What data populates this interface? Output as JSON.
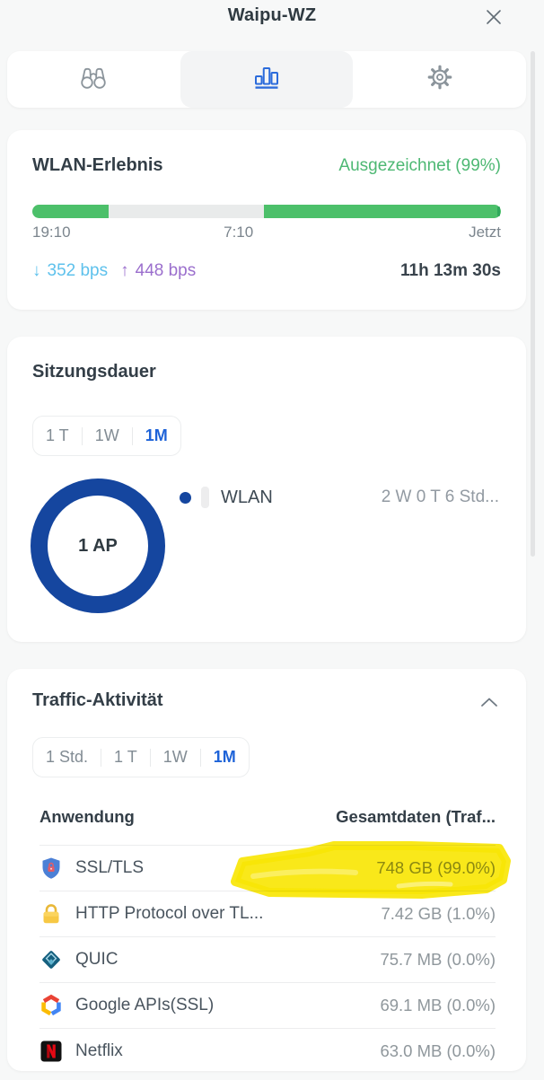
{
  "header": {
    "title": "Waipu-WZ"
  },
  "colors": {
    "accent_blue": "#1e63d8",
    "donut_blue": "#15469f",
    "status_green": "#4db873",
    "bar_green": "#4cc06a",
    "bar_gray": "#e9ebeb",
    "download_blue": "#5ec1ec",
    "upload_purple": "#9b6fcd",
    "highlight_yellow": "#f9e606"
  },
  "wlan": {
    "title": "WLAN-Erlebnis",
    "status": "Ausgezeichnet (99%)",
    "timeline_segments": [
      {
        "color": "#4cc06a",
        "pct": 16.2
      },
      {
        "color": "#e9ebeb",
        "pct": 33.3
      },
      {
        "color": "#4cc06a",
        "pct": 50.5
      }
    ],
    "time_start": "19:10",
    "time_mid": "7:10",
    "time_end": "Jetzt",
    "download_arrow": "↓",
    "download": "352 bps",
    "upload_arrow": "↑",
    "upload": "448 bps",
    "session_time": "11h 13m 30s"
  },
  "session": {
    "title": "Sitzungsdauer",
    "ranges": [
      {
        "label": "1 T",
        "active": false
      },
      {
        "label": "1W",
        "active": false
      },
      {
        "label": "1M",
        "active": true
      }
    ],
    "donut_label": "1 AP",
    "legend": {
      "name": "WLAN",
      "value": "2 W 0 T 6 Std..."
    }
  },
  "traffic": {
    "title": "Traffic-Aktivität",
    "ranges": [
      {
        "label": "1 Std.",
        "active": false
      },
      {
        "label": "1 T",
        "active": false
      },
      {
        "label": "1W",
        "active": false
      },
      {
        "label": "1M",
        "active": true
      }
    ],
    "col_app": "Anwendung",
    "col_total": "Gesamtdaten (Traf...",
    "rows": [
      {
        "icon": "ssl-shield",
        "name": "SSL/TLS",
        "value": "748 GB (99.0%)",
        "highlighted": true
      },
      {
        "icon": "padlock",
        "name": "HTTP Protocol over TL...",
        "value": "7.42 GB (1.0%)",
        "highlighted": false
      },
      {
        "icon": "quic",
        "name": "QUIC",
        "value": "75.7 MB (0.0%)",
        "highlighted": false
      },
      {
        "icon": "google-apis",
        "name": "Google APIs(SSL)",
        "value": "69.1 MB (0.0%)",
        "highlighted": false
      },
      {
        "icon": "netflix",
        "name": "Netflix",
        "value": "63.0 MB (0.0%)",
        "highlighted": false
      }
    ]
  }
}
